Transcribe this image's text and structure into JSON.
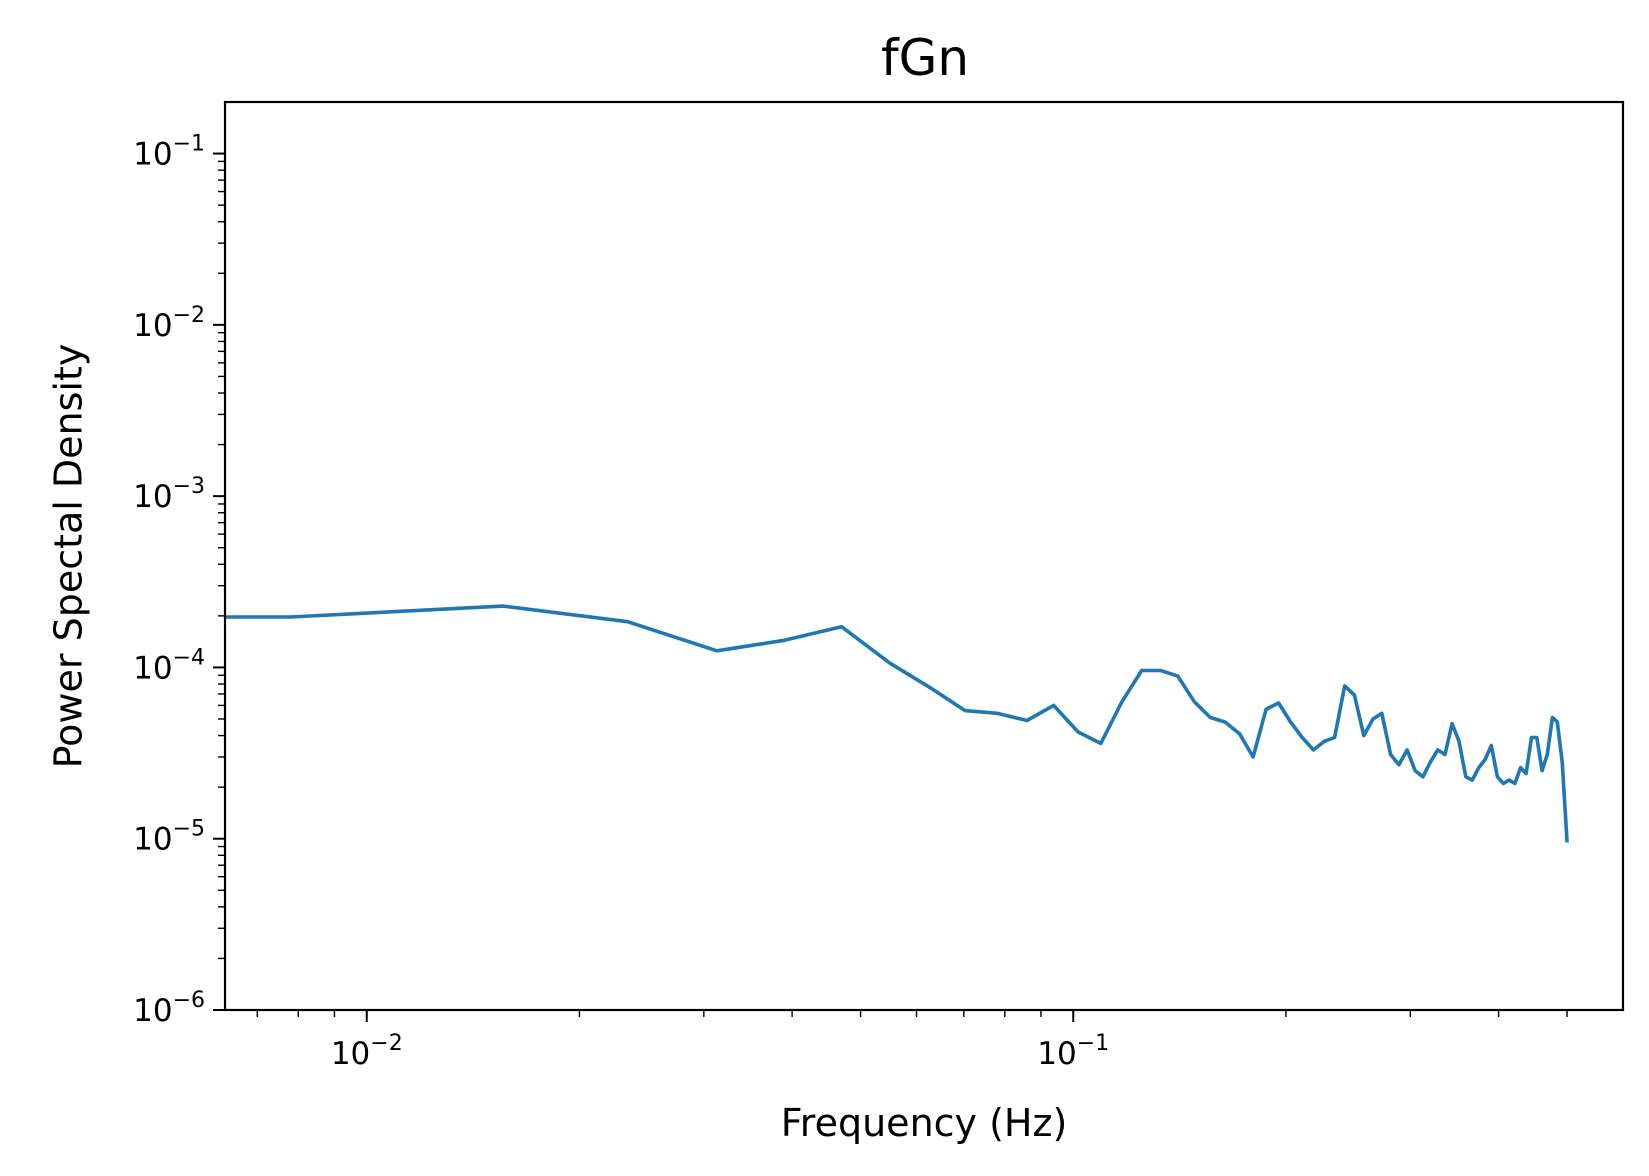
{
  "chart_data": {
    "type": "line",
    "title": "fGn",
    "xlabel": "Frequency (Hz)",
    "ylabel": "Power Spectal Density",
    "xscale": "log",
    "yscale": "log",
    "xlim": [
      0.0063,
      0.6
    ],
    "ylim": [
      1e-06,
      0.2
    ],
    "grid": false,
    "legend": "none",
    "x_ticks": [
      {
        "value": 0.01,
        "base": "10",
        "exp": "−2"
      },
      {
        "value": 0.1,
        "base": "10",
        "exp": "−1"
      }
    ],
    "y_ticks": [
      {
        "value": 1e-06,
        "base": "10",
        "exp": "−6"
      },
      {
        "value": 1e-05,
        "base": "10",
        "exp": "−5"
      },
      {
        "value": 0.0001,
        "base": "10",
        "exp": "−4"
      },
      {
        "value": 0.001,
        "base": "10",
        "exp": "−3"
      },
      {
        "value": 0.01,
        "base": "10",
        "exp": "−2"
      },
      {
        "value": 0.1,
        "base": "10",
        "exp": "−1"
      }
    ],
    "series": [
      {
        "color": "#1f77b4",
        "x": [
          0.00625,
          0.0078,
          0.0156,
          0.0234,
          0.0313,
          0.039,
          0.047,
          0.055,
          0.0625,
          0.0703,
          0.078,
          0.086,
          0.0938,
          0.1016,
          0.1094,
          0.1172,
          0.125,
          0.133,
          0.1406,
          0.1484,
          0.1563,
          0.164,
          0.172,
          0.1797,
          0.1875,
          0.1953,
          0.2031,
          0.2109,
          0.2188,
          0.2266,
          0.2344,
          0.2422,
          0.25,
          0.2578,
          0.2656,
          0.2734,
          0.2813,
          0.289,
          0.2969,
          0.3047,
          0.3125,
          0.3203,
          0.328,
          0.3359,
          0.3438,
          0.3516,
          0.3594,
          0.3672,
          0.375,
          0.3828,
          0.3906,
          0.3984,
          0.4063,
          0.414,
          0.4219,
          0.4297,
          0.4375,
          0.4453,
          0.4531,
          0.4609,
          0.4688,
          0.4766,
          0.4844,
          0.4922,
          0.5
        ],
        "y": [
          0.000197,
          0.000197,
          0.000228,
          0.000185,
          0.000125,
          0.000144,
          0.000173,
          0.000106,
          7.7e-05,
          5.6e-05,
          5.4e-05,
          4.9e-05,
          6e-05,
          4.2e-05,
          3.6e-05,
          6.3e-05,
          9.6e-05,
          9.6e-05,
          8.9e-05,
          6.3e-05,
          5.1e-05,
          4.8e-05,
          4.1e-05,
          3e-05,
          5.7e-05,
          6.2e-05,
          4.8e-05,
          3.9e-05,
          3.3e-05,
          3.7e-05,
          3.9e-05,
          7.8e-05,
          6.9e-05,
          4e-05,
          5e-05,
          5.4e-05,
          3.1e-05,
          2.7e-05,
          3.3e-05,
          2.5e-05,
          2.3e-05,
          2.8e-05,
          3.3e-05,
          3.1e-05,
          4.7e-05,
          3.7e-05,
          2.3e-05,
          2.2e-05,
          2.6e-05,
          2.9e-05,
          3.5e-05,
          2.3e-05,
          2.1e-05,
          2.2e-05,
          2.1e-05,
          2.6e-05,
          2.4e-05,
          3.9e-05,
          3.9e-05,
          2.5e-05,
          3.1e-05,
          5.1e-05,
          4.8e-05,
          2.8e-05,
          9.5e-06
        ]
      }
    ]
  }
}
